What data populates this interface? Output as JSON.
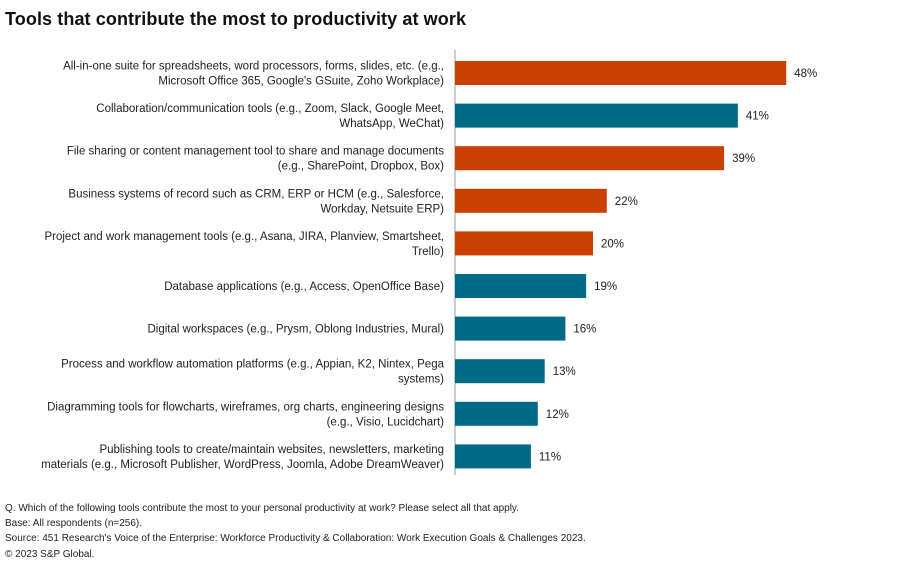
{
  "chart_data": {
    "type": "bar",
    "orientation": "horizontal",
    "title": "Tools that contribute the most to productivity at work",
    "categories": [
      [
        "All-in-one suite for spreadsheets, word processors, forms, slides, etc. (e.g.,",
        "Microsoft Office 365, Google's GSuite, Zoho Workplace)"
      ],
      [
        "Collaboration/communication tools (e.g., Zoom, Slack, Google Meet,",
        "WhatsApp, WeChat)"
      ],
      [
        "File sharing or content management tool to share and manage documents",
        "(e.g., SharePoint, Dropbox, Box)"
      ],
      [
        "Business systems of record such as CRM, ERP or HCM (e.g., Salesforce,",
        "Workday, Netsuite ERP)"
      ],
      [
        "Project and work management tools (e.g., Asana, JIRA, Planview, Smartsheet,",
        "Trello)"
      ],
      [
        "Database applications (e.g., Access, OpenOffice Base)"
      ],
      [
        "Digital workspaces (e.g., Prysm, Oblong Industries, Mural)"
      ],
      [
        "Process and workflow automation platforms (e.g., Appian, K2, Nintex, Pega",
        "systems)"
      ],
      [
        "Diagramming tools for flowcharts, wireframes, org charts, engineering designs",
        "(e.g., Visio, Lucidchart)"
      ],
      [
        "Publishing tools to create/maintain websites, newsletters, marketing",
        "materials (e.g., Microsoft Publisher, WordPress, Joomla, Adobe DreamWeaver)"
      ]
    ],
    "values": [
      48,
      41,
      39,
      22,
      20,
      19,
      16,
      13,
      12,
      11
    ],
    "value_labels": [
      "48%",
      "41%",
      "39%",
      "22%",
      "20%",
      "19%",
      "16%",
      "13%",
      "12%",
      "11%"
    ],
    "bar_colors": [
      "#c94000",
      "#006b86",
      "#c94000",
      "#c94000",
      "#c94000",
      "#006b86",
      "#006b86",
      "#006b86",
      "#006b86",
      "#006b86"
    ],
    "xlim": [
      0,
      50
    ],
    "grid": false,
    "legend": "none"
  },
  "footnotes": [
    "Q. Which of the following tools contribute the most to your personal productivity at work? Please select all that apply.",
    "Base: All respondents (n=256).",
    "Source: 451 Research's Voice of the Enterprise: Workforce Productivity & Collaboration: Work Execution Goals & Challenges 2023.",
    "© 2023 S&P Global."
  ],
  "colors": {
    "axis": "#999999"
  }
}
